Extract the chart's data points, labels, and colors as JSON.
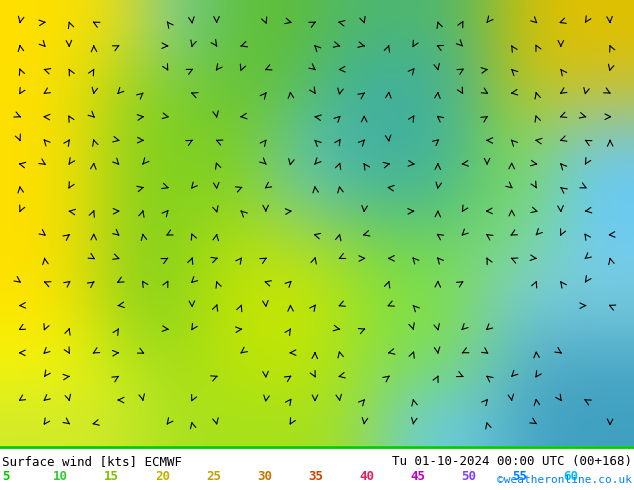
{
  "title_left": "Surface wind [kts] ECMWF",
  "title_right": "Tu 01-10-2024 00:00 UTC (00+168)",
  "credit": "©weatheronline.co.uk",
  "colorbar_values": [
    5,
    10,
    15,
    20,
    25,
    30,
    35,
    40,
    45,
    50,
    55,
    60
  ],
  "colorbar_colors": [
    "#00c800",
    "#32e632",
    "#96ff00",
    "#c8ff00",
    "#ffff00",
    "#ffc800",
    "#ff9600",
    "#ff6400",
    "#ff3200",
    "#ff0000",
    "#c80000",
    "#960000"
  ],
  "colorbar_label_colors": [
    "#00c800",
    "#32c832",
    "#96c800",
    "#c8c800",
    "#c8c800",
    "#c89600",
    "#ff6400",
    "#ff3264",
    "#ff00ff",
    "#9664ff",
    "#0096ff",
    "#00c8ff"
  ],
  "bg_color": "#ffffff",
  "map_colors": {
    "deep_yellow": "#ffff00",
    "light_yellow": "#ffff80",
    "yellow_green": "#c8ff00",
    "light_green": "#96ff64",
    "green": "#64c832",
    "dark_green": "#32c800",
    "cyan_green": "#00c864",
    "light_cyan": "#64ffb4",
    "cyan": "#00d4a0",
    "light_blue": "#64c8ff",
    "blue": "#0096ff"
  },
  "bottom_bar_color": "#00c800",
  "figsize": [
    6.34,
    4.9
  ],
  "dpi": 100
}
